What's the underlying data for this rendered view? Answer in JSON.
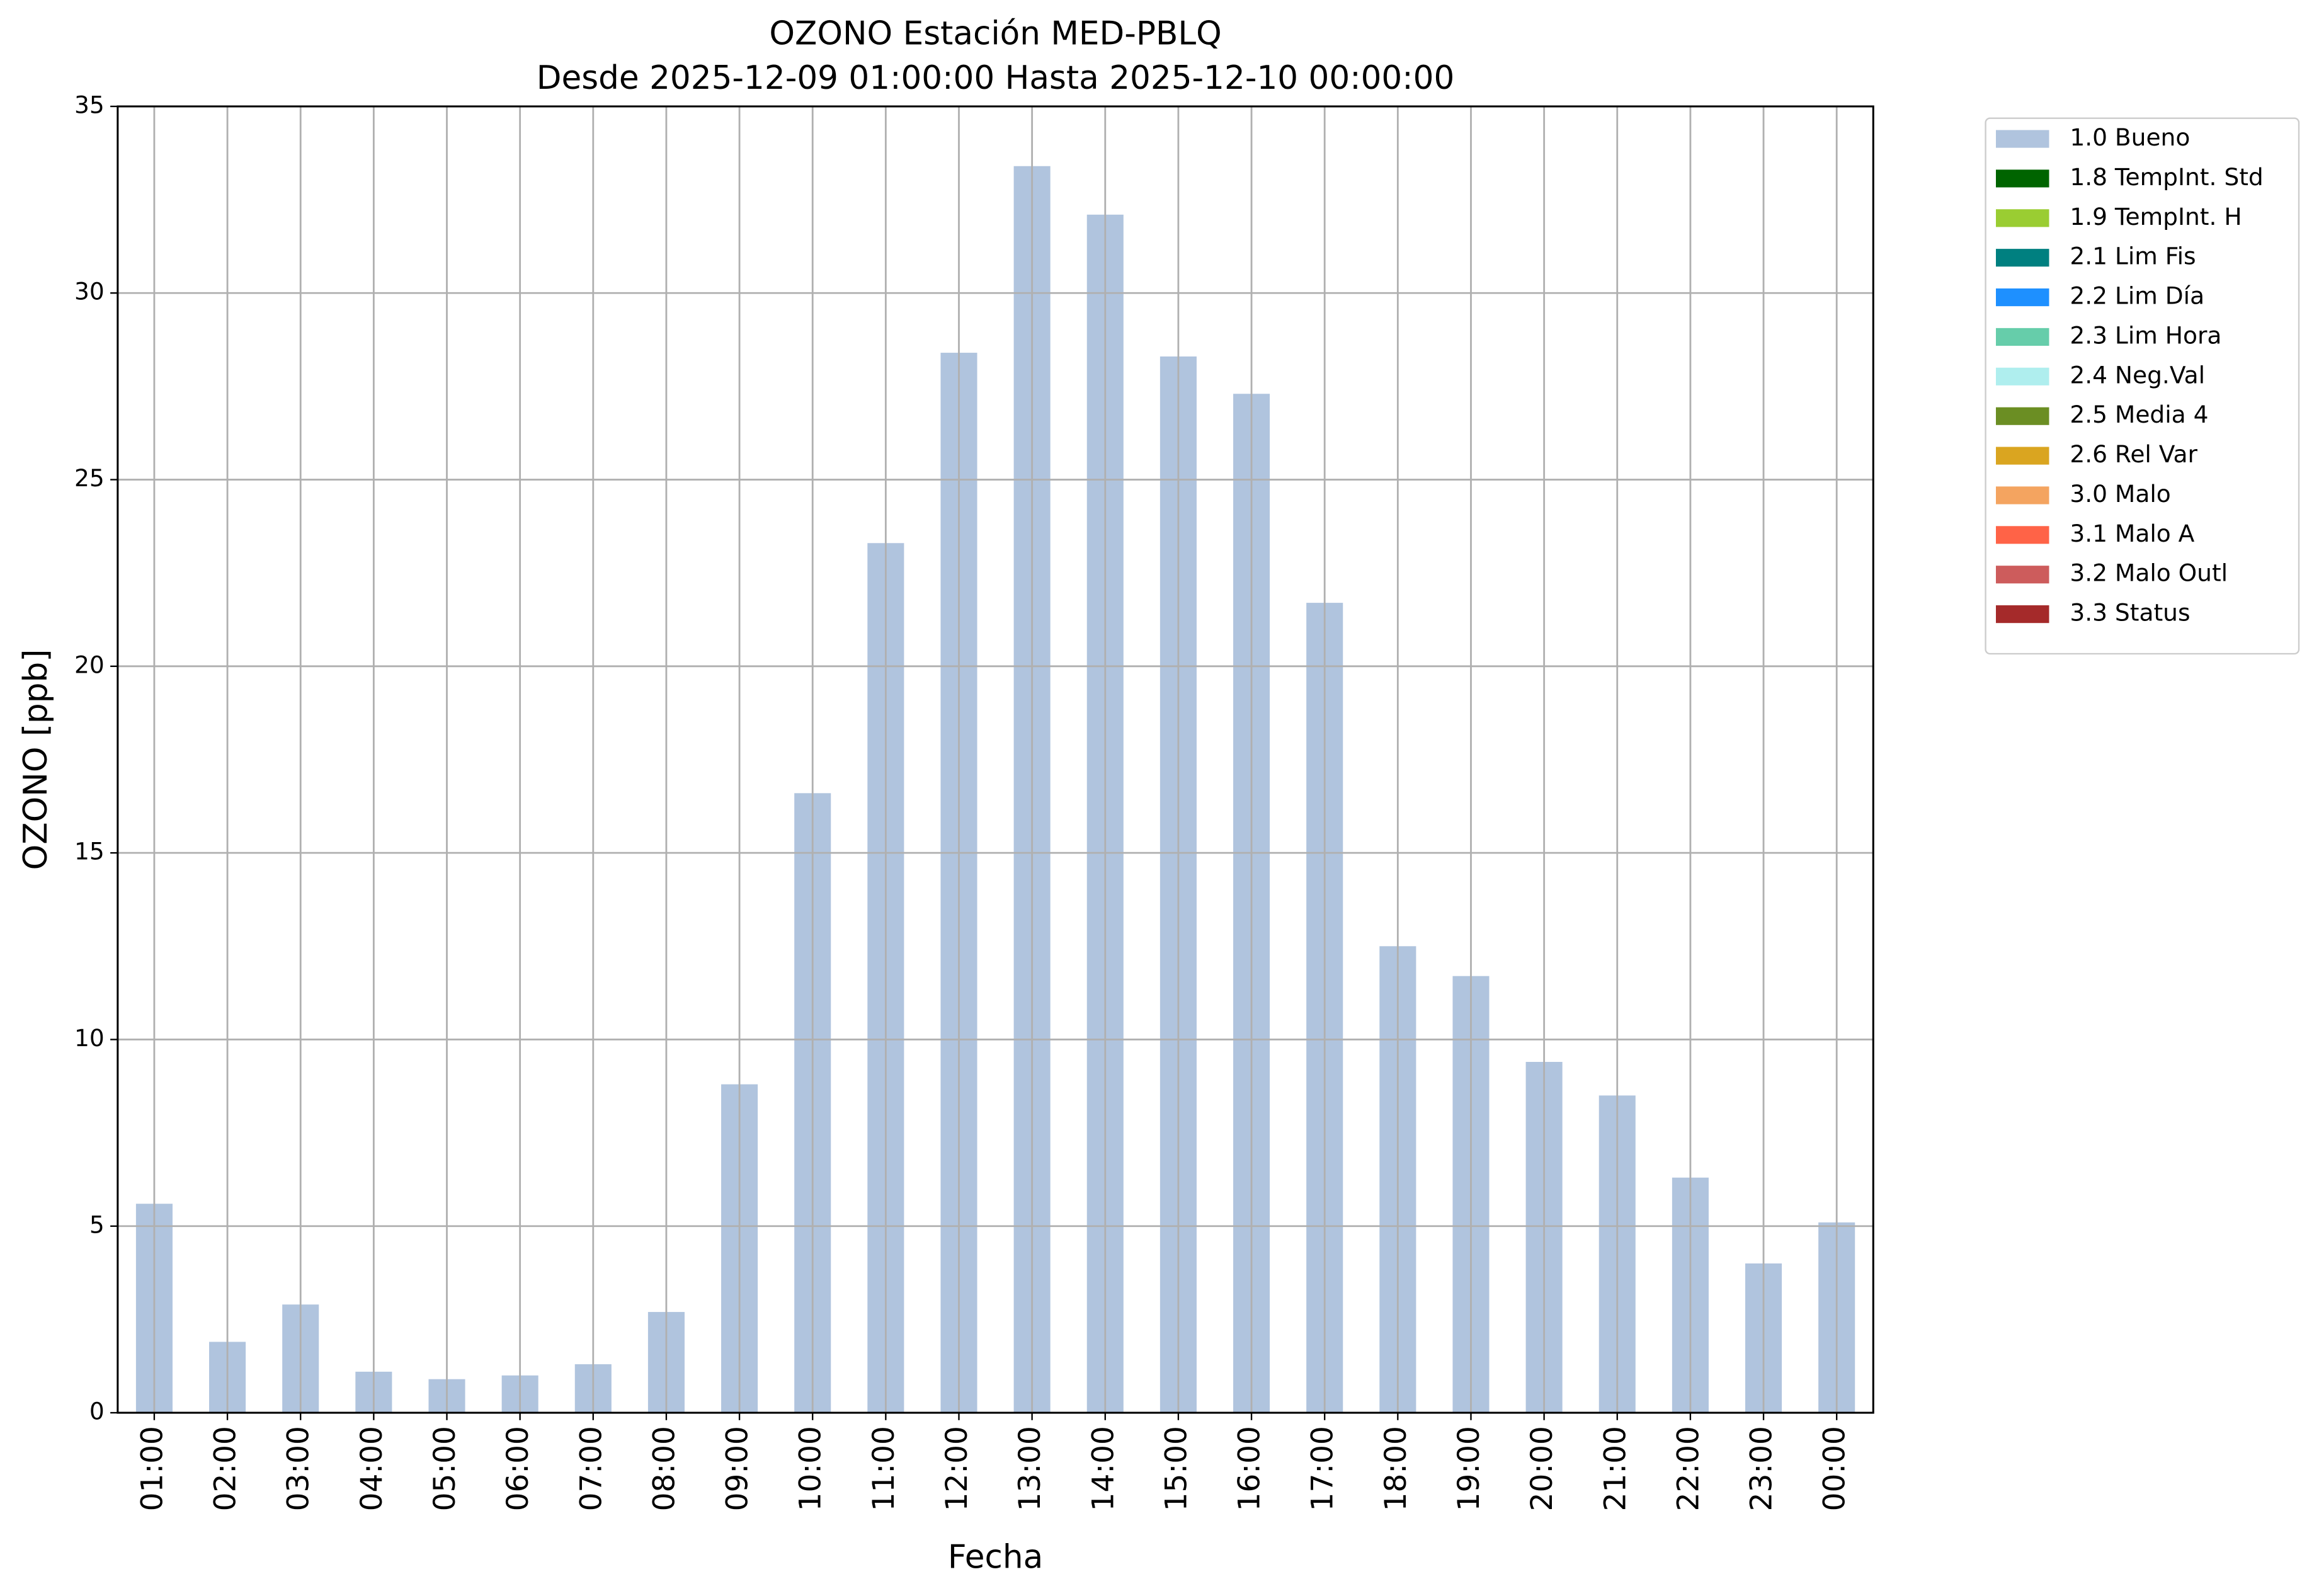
{
  "chart_data": {
    "type": "bar",
    "title": "OZONO Estación MED-PBLQ",
    "subtitle": "Desde 2025-12-09 01:00:00 Hasta 2025-12-10 00:00:00",
    "x_label": "Fecha",
    "y_label": "OZONO [ppb]",
    "categories": [
      "01:00",
      "02:00",
      "03:00",
      "04:00",
      "05:00",
      "06:00",
      "07:00",
      "08:00",
      "09:00",
      "10:00",
      "11:00",
      "12:00",
      "13:00",
      "14:00",
      "15:00",
      "16:00",
      "17:00",
      "18:00",
      "19:00",
      "20:00",
      "21:00",
      "22:00",
      "23:00",
      "00:00"
    ],
    "series": [
      {
        "name": "1.0 Bueno",
        "color": "#b0c4de",
        "values": [
          5.6,
          1.9,
          2.9,
          1.1,
          0.9,
          1.0,
          1.3,
          2.7,
          8.8,
          16.6,
          23.3,
          28.4,
          33.4,
          32.1,
          28.3,
          27.3,
          21.7,
          12.5,
          11.7,
          9.4,
          8.5,
          6.3,
          4.0,
          5.1
        ]
      }
    ],
    "legend": [
      {
        "name": "1.0 Bueno",
        "color": "#b0c4de"
      },
      {
        "name": "1.8 TempInt. Std",
        "color": "#006400"
      },
      {
        "name": "1.9 TempInt. H",
        "color": "#9acd32"
      },
      {
        "name": "2.1 Lim Fis",
        "color": "#008080"
      },
      {
        "name": "2.2 Lim Día",
        "color": "#1e90ff"
      },
      {
        "name": "2.3 Lim Hora",
        "color": "#66cdaa"
      },
      {
        "name": "2.4 Neg.Val",
        "color": "#afeeee"
      },
      {
        "name": "2.5 Media 4",
        "color": "#6b8e23"
      },
      {
        "name": "2.6 Rel Var",
        "color": "#daa520"
      },
      {
        "name": "3.0 Malo",
        "color": "#f4a460"
      },
      {
        "name": "3.1 Malo A",
        "color": "#ff6347"
      },
      {
        "name": "3.2 Malo Outl",
        "color": "#cd5c5c"
      },
      {
        "name": "3.3 Status",
        "color": "#a52a2a"
      }
    ],
    "legend_position": "outside upper right",
    "ylim": [
      0,
      35
    ],
    "yticks": [
      0,
      5,
      10,
      15,
      20,
      25,
      30,
      35
    ],
    "grid": true
  }
}
